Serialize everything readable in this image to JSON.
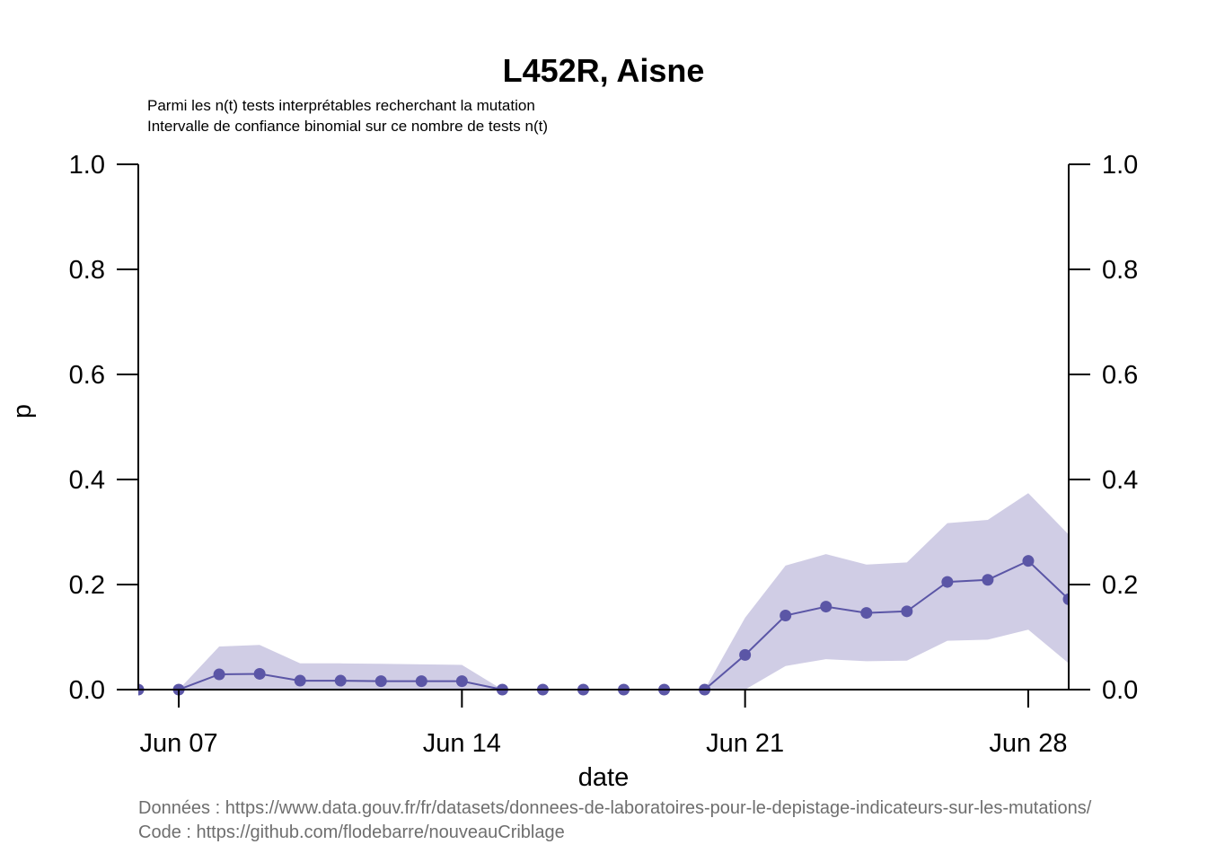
{
  "chart_data": {
    "type": "line",
    "title": "L452R, Aisne",
    "subtitle_lines": [
      "Parmi les n(t) tests interprétables recherchant la mutation",
      "Intervalle de confiance binomial sur ce nombre de tests n(t)"
    ],
    "xlabel": "date",
    "ylabel": "p",
    "x": [
      "2021-06-06",
      "2021-06-07",
      "2021-06-08",
      "2021-06-09",
      "2021-06-10",
      "2021-06-11",
      "2021-06-12",
      "2021-06-13",
      "2021-06-14",
      "2021-06-15",
      "2021-06-16",
      "2021-06-17",
      "2021-06-18",
      "2021-06-19",
      "2021-06-20",
      "2021-06-21",
      "2021-06-22",
      "2021-06-23",
      "2021-06-24",
      "2021-06-25",
      "2021-06-26",
      "2021-06-27",
      "2021-06-28",
      "2021-06-29"
    ],
    "series": [
      {
        "values": [
          0,
          0,
          0.029,
          0.03,
          0.017,
          0.017,
          0.016,
          0.016,
          0.016,
          0,
          0,
          0,
          0,
          0,
          0,
          0.066,
          0.141,
          0.158,
          0.146,
          0.149,
          0.205,
          0.209,
          0.245,
          0.172
        ],
        "ci_low": [
          0,
          0,
          0,
          0,
          0,
          0,
          0,
          0,
          0,
          0,
          0,
          0,
          0,
          0,
          0,
          0,
          0.045,
          0.058,
          0.054,
          0.055,
          0.093,
          0.095,
          0.114,
          0.05
        ],
        "ci_high": [
          0,
          0,
          0.082,
          0.085,
          0.05,
          0.05,
          0.049,
          0.048,
          0.047,
          0,
          0,
          0,
          0,
          0,
          0,
          0.137,
          0.236,
          0.258,
          0.238,
          0.242,
          0.317,
          0.323,
          0.374,
          0.295
        ]
      }
    ],
    "ylim": [
      0,
      1
    ],
    "xlim": [
      "2021-06-06",
      "2021-06-29"
    ],
    "yticks": [
      "0.0",
      "0.2",
      "0.4",
      "0.6",
      "0.8",
      "1.0"
    ],
    "xticks": [
      {
        "date": "2021-06-07",
        "label": "Jun 07"
      },
      {
        "date": "2021-06-14",
        "label": "Jun 14"
      },
      {
        "date": "2021-06-21",
        "label": "Jun 21"
      },
      {
        "date": "2021-06-28",
        "label": "Jun 28"
      }
    ],
    "grid": false,
    "colors": {
      "line": "#5b56a6",
      "band": "#d0cde5",
      "axis": "#000000"
    }
  },
  "caption": {
    "data_line": "Données : https://www.data.gouv.fr/fr/datasets/donnees-de-laboratoires-pour-le-depistage-indicateurs-sur-les-mutations/",
    "code_line": "Code : https://github.com/flodebarre/nouveauCriblage"
  }
}
